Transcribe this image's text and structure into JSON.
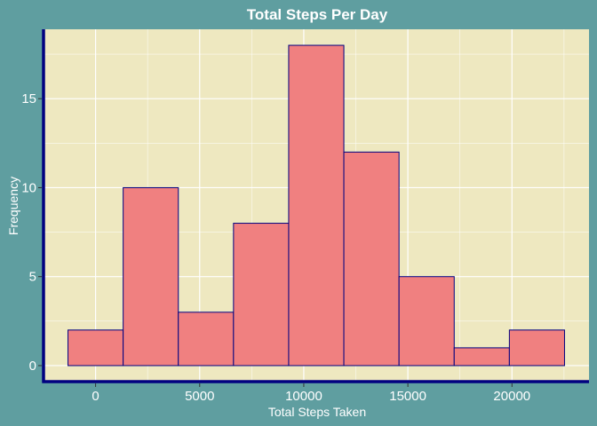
{
  "colors": {
    "background": "#5F9EA0",
    "panel": "#EEE8C0",
    "grid": "#FFFFFF",
    "bar_fill": "#F08080",
    "bar_outline": "#000080",
    "axis_line": "#000080",
    "text": "#FFFFFF"
  },
  "chart_data": {
    "type": "bar",
    "title": "Total Steps Per Day",
    "xlabel": "Total Steps Taken",
    "ylabel": "Frequency",
    "bins": [
      {
        "x0": -1325,
        "x1": 1325,
        "count": 2
      },
      {
        "x0": 1325,
        "x1": 3975,
        "count": 10
      },
      {
        "x0": 3975,
        "x1": 6625,
        "count": 3
      },
      {
        "x0": 6625,
        "x1": 9275,
        "count": 8
      },
      {
        "x0": 9275,
        "x1": 11925,
        "count": 18
      },
      {
        "x0": 11925,
        "x1": 14575,
        "count": 12
      },
      {
        "x0": 14575,
        "x1": 17225,
        "count": 5
      },
      {
        "x0": 17225,
        "x1": 19875,
        "count": 1
      },
      {
        "x0": 19875,
        "x1": 22525,
        "count": 2
      }
    ],
    "xlim": [
      -2500,
      23700
    ],
    "ylim": [
      -0.9,
      18.9
    ],
    "xticks": [
      0,
      5000,
      10000,
      15000,
      20000
    ],
    "xtick_labels": [
      "0",
      "5000",
      "10000",
      "15000",
      "20000"
    ],
    "yticks": [
      0,
      5,
      10,
      15
    ],
    "ytick_labels": [
      "0",
      "5",
      "10",
      "15"
    ],
    "grid": true,
    "legend": "none"
  }
}
